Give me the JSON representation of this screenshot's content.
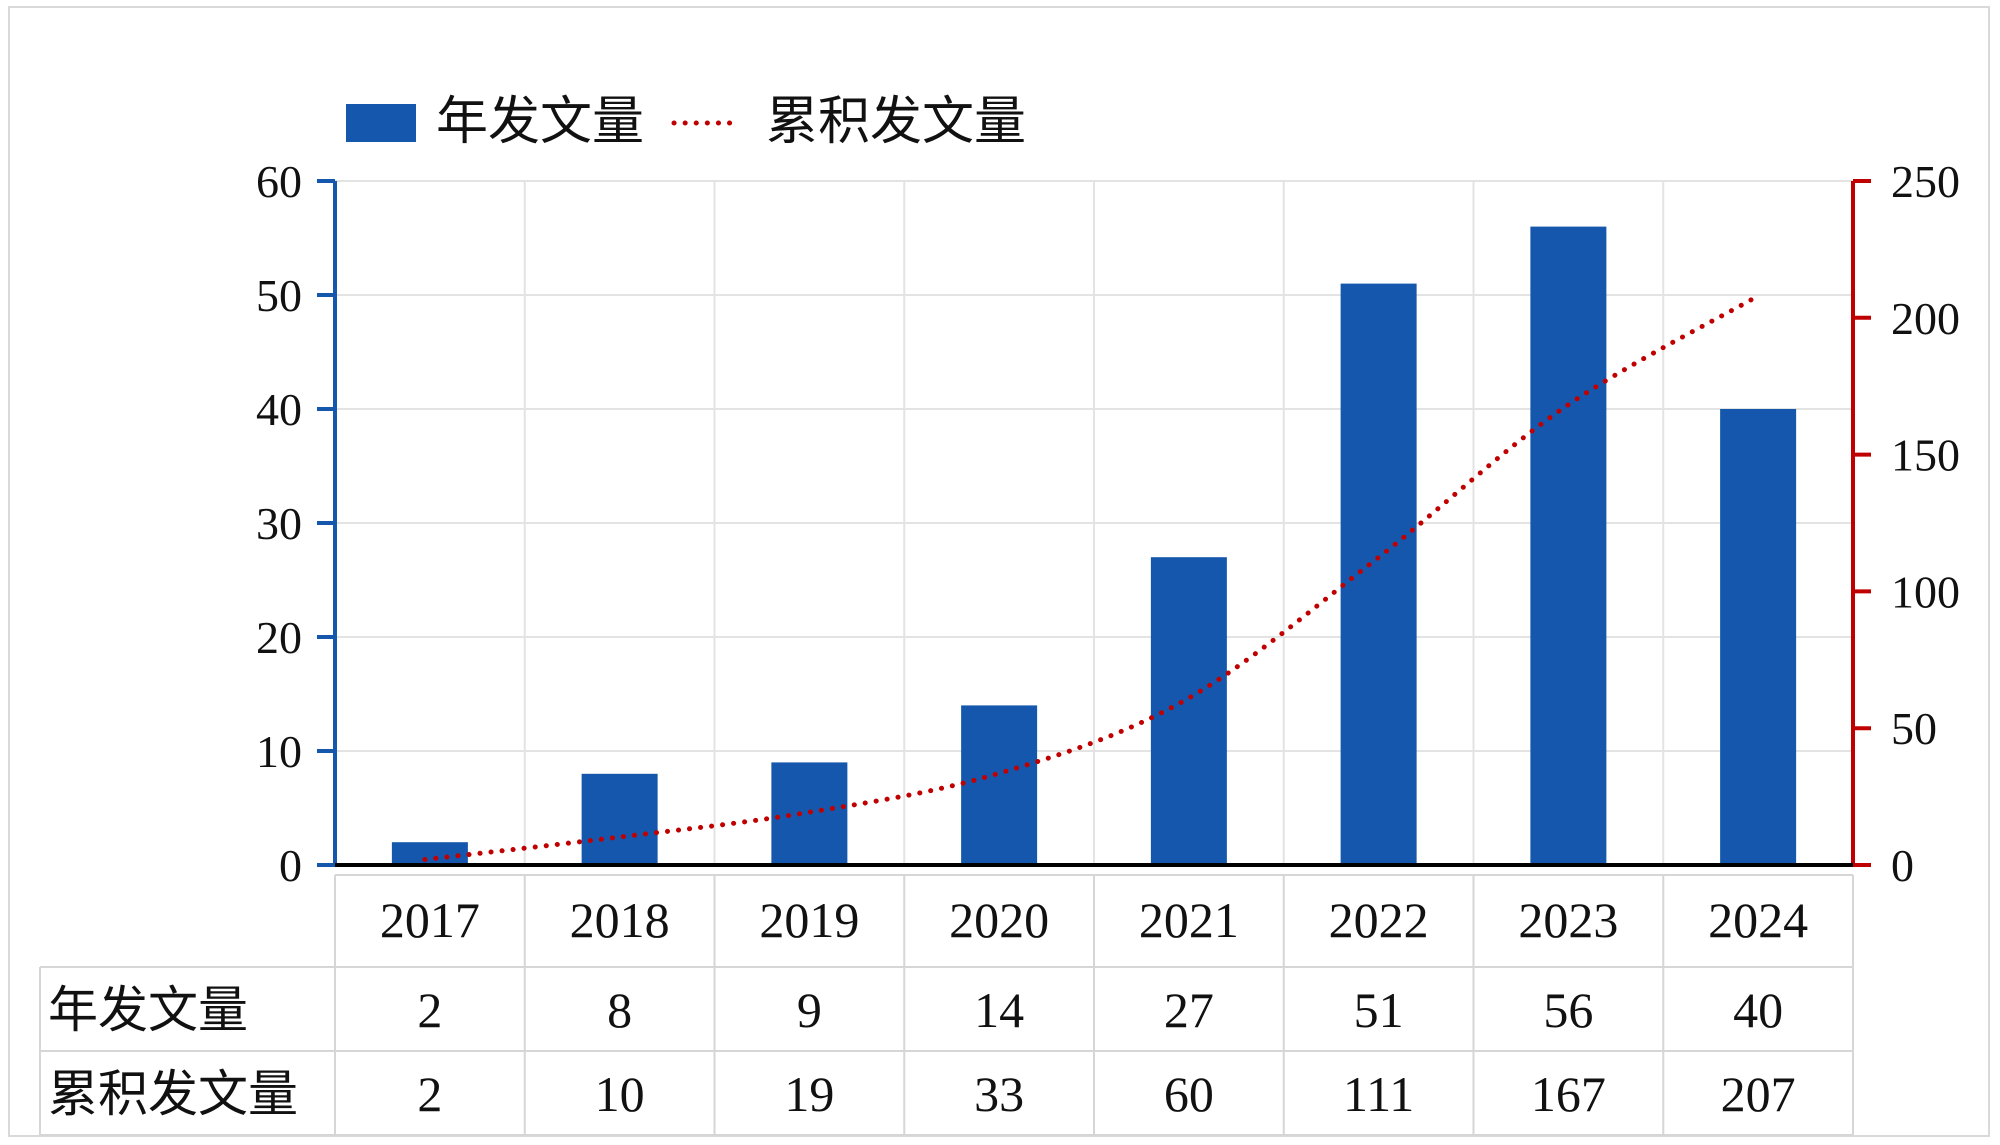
{
  "chart_data": {
    "type": "bar",
    "categories": [
      "2017",
      "2018",
      "2019",
      "2020",
      "2021",
      "2022",
      "2023",
      "2024"
    ],
    "series": [
      {
        "name": "年发文量",
        "type": "bar",
        "axis": "left",
        "values": [
          2,
          8,
          9,
          14,
          27,
          51,
          56,
          40
        ],
        "color": "#1557ad"
      },
      {
        "name": "累积发文量",
        "type": "line",
        "style": "dotted",
        "axis": "right",
        "values": [
          2,
          10,
          19,
          33,
          60,
          111,
          167,
          207
        ],
        "color": "#c00000"
      }
    ],
    "ylim_left": [
      0,
      60
    ],
    "yticks_left": [
      0,
      10,
      20,
      30,
      40,
      50,
      60
    ],
    "ylim_right": [
      0,
      250
    ],
    "yticks_right": [
      0,
      50,
      100,
      150,
      200,
      250
    ],
    "left_axis_color": "#1557ad",
    "right_axis_color": "#c00000",
    "grid": true,
    "legend_position": "top-left",
    "data_table": {
      "rows": [
        {
          "label": "年发文量",
          "values": [
            "2",
            "8",
            "9",
            "14",
            "27",
            "51",
            "56",
            "40"
          ]
        },
        {
          "label": "累积发文量",
          "values": [
            "2",
            "10",
            "19",
            "33",
            "60",
            "111",
            "167",
            "207"
          ]
        }
      ]
    }
  }
}
